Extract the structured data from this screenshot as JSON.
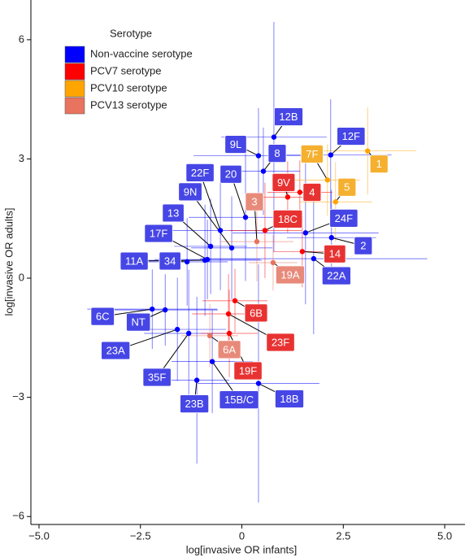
{
  "chart_data": {
    "type": "scatter",
    "x_label": "log[invasive OR infants]",
    "y_label": "log[invasive OR adults]",
    "legend_title": "Serotype",
    "legend": "top-left",
    "xlim": [
      -5.2,
      5.5
    ],
    "ylim": [
      -6.2,
      7
    ],
    "xticks": [
      {
        "value": -5,
        "label": "−5.0"
      },
      {
        "value": -2.5,
        "label": "−2.5"
      },
      0,
      2.5,
      {
        "value": 5,
        "label": "5.0"
      }
    ],
    "yticks": [
      {
        "value": -6,
        "label": "−6"
      },
      {
        "value": -3,
        "label": "−3"
      },
      0,
      3,
      6
    ],
    "series": [
      {
        "name": "Non-vaccine serotype",
        "color": "#0000ff",
        "box_color": "#4646e6",
        "labels": [
          "12B",
          "9L",
          "8",
          "12F",
          "22F",
          "20",
          "9N",
          "24F",
          "13",
          "17F",
          "11A",
          "34",
          "2",
          "22A",
          "6C",
          "NT",
          "23A",
          "35F",
          "23B",
          "15B/C",
          "18B"
        ],
        "x": [
          0.79,
          0.41,
          0.53,
          2.19,
          -0.53,
          0.09,
          -0.25,
          1.57,
          -0.77,
          -0.85,
          -0.91,
          -1.35,
          2.21,
          1.77,
          -2.21,
          -1.89,
          -1.59,
          -1.31,
          -1.11,
          -0.73,
          0.41
        ],
        "values": [
          3.55,
          3.08,
          2.69,
          3.1,
          1.2,
          1.53,
          0.76,
          1.14,
          0.8,
          0.47,
          0.45,
          0.41,
          1.02,
          0.49,
          -0.78,
          -0.8,
          -1.29,
          -1.39,
          -2.57,
          -2.1,
          -2.65
        ],
        "xerr": [
          1.3,
          1.6,
          0.9,
          1.5,
          1.2,
          1.4,
          1.0,
          1.8,
          0.9,
          1.3,
          1.4,
          1.0,
          1.1,
          2.8,
          1.6,
          1.3,
          1.2,
          1.1,
          0.8,
          1.0,
          1.5
        ],
        "yerr": [
          2.9,
          1.2,
          1.1,
          1.4,
          1.5,
          1.6,
          1.3,
          1.8,
          1.2,
          1.0,
          1.4,
          1.1,
          1.2,
          1.9,
          1.0,
          0.9,
          1.3,
          1.6,
          2.1,
          1.3,
          3.0
        ]
      },
      {
        "name": "PCV7 serotype",
        "color": "#ff0000",
        "box_color": "#e83232",
        "labels": [
          "9V",
          "4",
          "18C",
          "14",
          "6B",
          "23F",
          "19F"
        ],
        "x": [
          1.13,
          1.43,
          0.57,
          1.49,
          -0.17,
          -0.33,
          -0.31
        ],
        "values": [
          2.04,
          2.16,
          1.2,
          0.67,
          -0.57,
          -0.9,
          -1.39
        ],
        "xerr": [
          0.6,
          0.8,
          0.9,
          0.7,
          0.8,
          0.9,
          0.7
        ],
        "yerr": [
          0.9,
          0.8,
          1.2,
          0.9,
          0.8,
          1.0,
          1.1
        ]
      },
      {
        "name": "PCV10 serotype",
        "color": "#ffa500",
        "box_color": "#f5b030",
        "labels": [
          "7F",
          "1",
          "5"
        ],
        "x": [
          2.11,
          3.1,
          2.31
        ],
        "values": [
          2.47,
          3.2,
          1.92
        ],
        "xerr": [
          0.8,
          1.2,
          0.9
        ],
        "yerr": [
          0.9,
          1.1,
          1.0
        ]
      },
      {
        "name": "PCV13 serotype",
        "color": "#e8735e",
        "box_color": "#e88a7a",
        "labels": [
          "3",
          "19A",
          "6A"
        ],
        "x": [
          0.37,
          0.77,
          -0.79
        ],
        "values": [
          0.92,
          0.39,
          -1.45
        ],
        "xerr": [
          0.9,
          0.6,
          0.7
        ],
        "yerr": [
          1.0,
          0.7,
          0.8
        ]
      }
    ]
  }
}
